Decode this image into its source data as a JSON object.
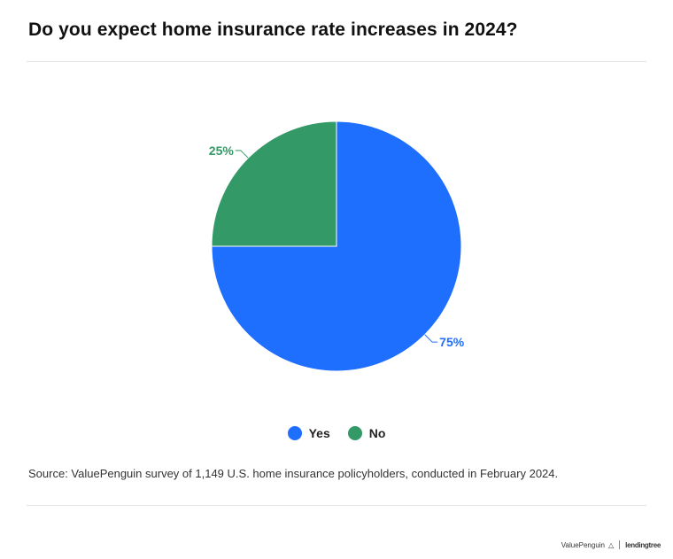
{
  "title": "Do you expect home insurance rate increases in 2024?",
  "source": "Source: ValuePenguin survey of 1,149 U.S. home insurance policyholders, conducted in February 2024.",
  "brand": {
    "left": "ValuePenguin",
    "right": "lendingtree"
  },
  "chart_data": {
    "type": "pie",
    "title": "Do you expect home insurance rate increases in 2024?",
    "legend_position": "bottom",
    "slices": [
      {
        "label": "Yes",
        "value": 75,
        "display": "75%",
        "color": "#1f6fff"
      },
      {
        "label": "No",
        "value": 25,
        "display": "25%",
        "color": "#339966"
      }
    ]
  }
}
